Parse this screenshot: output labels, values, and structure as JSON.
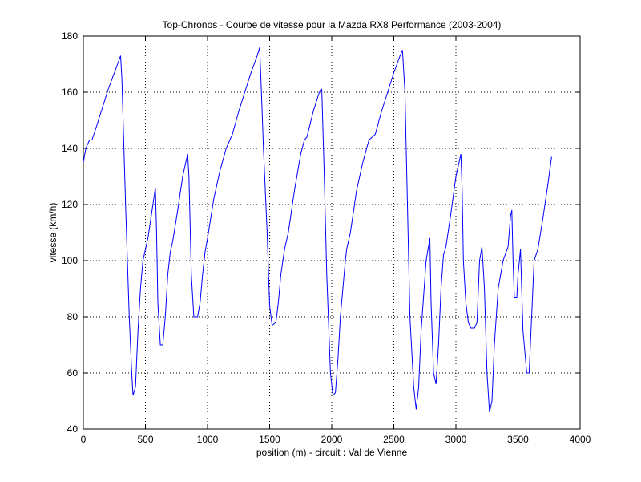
{
  "chart_data": {
    "type": "line",
    "title": "Top-Chronos - Courbe de vitesse pour la Mazda RX8 Performance (2003-2004)",
    "xlabel": "position (m) - circuit : Val de Vienne",
    "ylabel": "vitesse (km/h)",
    "xlim": [
      0,
      4000
    ],
    "ylim": [
      40,
      180
    ],
    "xticks": [
      0,
      500,
      1000,
      1500,
      2000,
      2500,
      3000,
      3500,
      4000
    ],
    "yticks": [
      40,
      60,
      80,
      100,
      120,
      140,
      160,
      180
    ],
    "xtick_labels": [
      "0",
      "500",
      "1000",
      "1500",
      "2000",
      "2500",
      "3000",
      "3500",
      "4000"
    ],
    "ytick_labels": [
      "40",
      "60",
      "80",
      "100",
      "120",
      "140",
      "160",
      "180"
    ],
    "grid": true,
    "line_color": "#0000ff",
    "series": [
      {
        "x": [
          0,
          20,
          50,
          70,
          100,
          150,
          200,
          250,
          300,
          310,
          340,
          370,
          390,
          400,
          420,
          440,
          460,
          480,
          500,
          520,
          550,
          580,
          590,
          600,
          620,
          640,
          660,
          680,
          700,
          720,
          760,
          800,
          840,
          850,
          870,
          890,
          920,
          940,
          960,
          980,
          1000,
          1050,
          1100,
          1150,
          1200,
          1250,
          1300,
          1350,
          1400,
          1420,
          1430,
          1450,
          1480,
          1500,
          1520,
          1550,
          1570,
          1590,
          1620,
          1650,
          1700,
          1750,
          1780,
          1800,
          1850,
          1900,
          1920,
          1940,
          1960,
          1990,
          2010,
          2030,
          2050,
          2070,
          2090,
          2110,
          2120,
          2150,
          2200,
          2250,
          2300,
          2350,
          2400,
          2450,
          2500,
          2550,
          2570,
          2590,
          2610,
          2630,
          2660,
          2680,
          2700,
          2720,
          2760,
          2790,
          2800,
          2820,
          2840,
          2860,
          2880,
          2900,
          2920,
          2960,
          3000,
          3040,
          3050,
          3060,
          3080,
          3100,
          3120,
          3150,
          3170,
          3190,
          3210,
          3230,
          3250,
          3270,
          3290,
          3310,
          3340,
          3380,
          3420,
          3440,
          3450,
          3460,
          3470,
          3490,
          3500,
          3520,
          3530,
          3540,
          3570,
          3590,
          3610,
          3630,
          3660,
          3700,
          3740,
          3770
        ],
        "y": [
          135,
          140,
          143,
          143,
          147,
          154,
          161,
          167,
          173,
          165,
          120,
          80,
          60,
          52,
          55,
          75,
          90,
          100,
          104,
          108,
          117,
          126,
          110,
          85,
          70,
          70,
          80,
          95,
          103,
          107,
          118,
          130,
          138,
          130,
          95,
          80,
          80,
          85,
          95,
          103,
          108,
          122,
          132,
          140,
          145,
          153,
          160,
          167,
          173,
          176,
          165,
          140,
          110,
          84,
          77,
          78,
          85,
          95,
          104,
          110,
          125,
          138,
          143,
          144,
          153,
          160,
          161,
          130,
          95,
          60,
          52,
          53,
          65,
          80,
          90,
          100,
          104,
          110,
          125,
          135,
          143,
          145,
          153,
          160,
          167,
          173,
          175,
          160,
          120,
          80,
          55,
          47,
          55,
          75,
          100,
          108,
          85,
          60,
          56,
          70,
          90,
          102,
          105,
          117,
          130,
          138,
          125,
          100,
          85,
          78,
          76,
          76,
          78,
          100,
          105,
          90,
          60,
          46,
          50,
          70,
          90,
          100,
          105,
          116,
          118,
          100,
          87,
          87,
          95,
          104,
          90,
          75,
          60,
          60,
          80,
          100,
          104,
          115,
          127,
          137
        ]
      }
    ]
  }
}
